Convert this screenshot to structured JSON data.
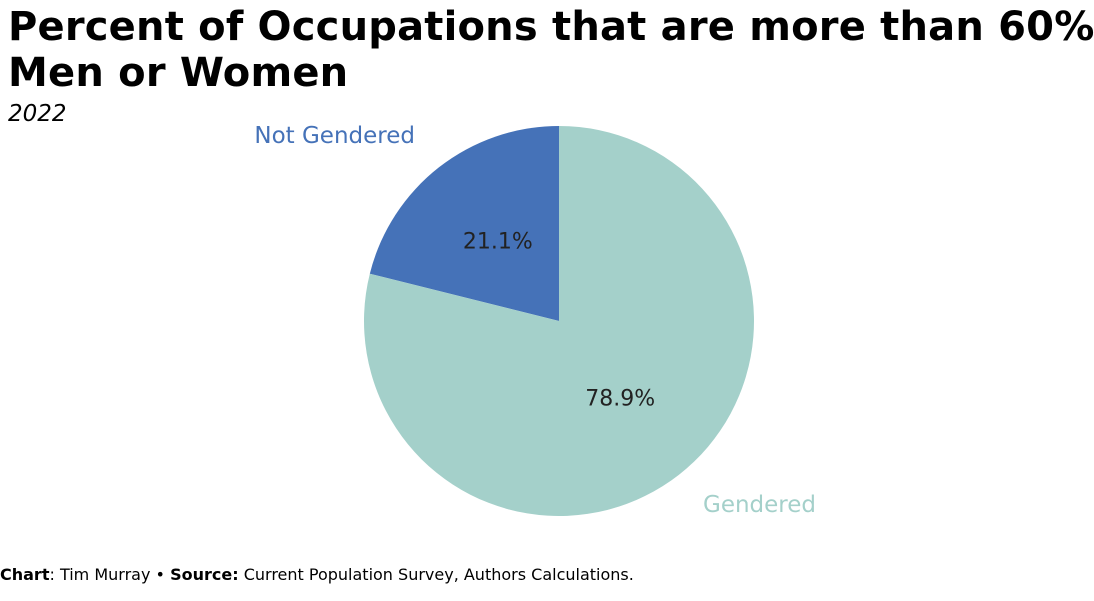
{
  "chart_data": {
    "type": "pie",
    "title_lines": [
      "Percent of Occupations that are more than 60%",
      "Men or Women"
    ],
    "subtitle": "2022",
    "slices": [
      {
        "name": "Not Gendered",
        "value": 21.1,
        "label": "21.1%",
        "color": "#4572b8"
      },
      {
        "name": "Gendered",
        "value": 78.9,
        "label": "78.9%",
        "color": "#a4d0ca"
      }
    ],
    "legend": "none",
    "start": "12 o'clock",
    "direction": "counterclockwise"
  },
  "caption": {
    "chart_label": "Chart",
    "chart_author": "Tim Murray",
    "separator": "•",
    "source_label": "Source:",
    "source_text": "Current Population Survey, Authors Calculations."
  }
}
